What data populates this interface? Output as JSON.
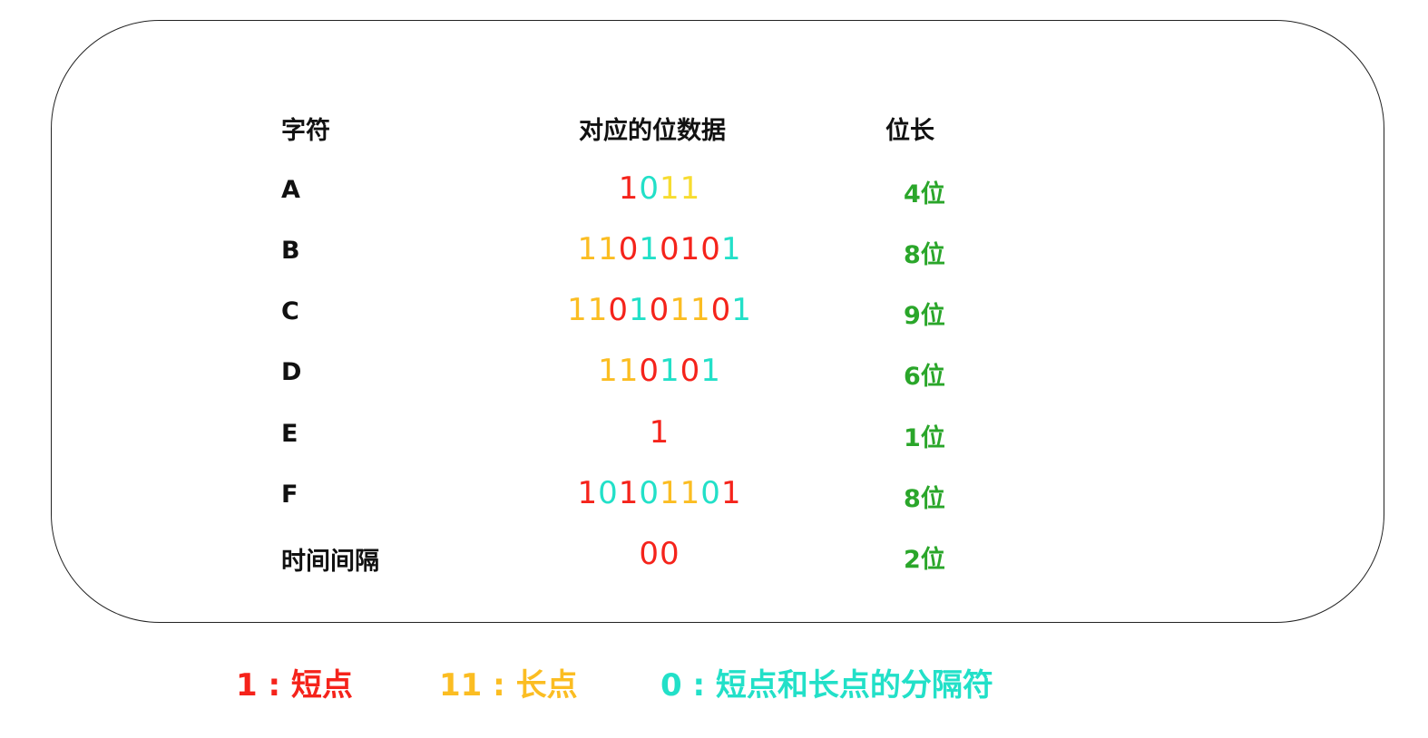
{
  "colors": {
    "short": "#f5231b",
    "long": "#fbbd22",
    "separator": "#22e0c8",
    "yellow": "#f7dc30",
    "length": "#2aa62a"
  },
  "headers": [
    "字符",
    "对应的位数据",
    "位长"
  ],
  "rows": [
    {
      "char": "A",
      "bits": [
        [
          "1",
          "short"
        ],
        [
          "0",
          "separator"
        ],
        [
          "1",
          "yellow"
        ],
        [
          "1",
          "yellow"
        ]
      ],
      "length": "4位"
    },
    {
      "char": "B",
      "bits": [
        [
          "1",
          "long"
        ],
        [
          "1",
          "long"
        ],
        [
          "0",
          "short"
        ],
        [
          "1",
          "separator"
        ],
        [
          "0",
          "short"
        ],
        [
          "1",
          "short"
        ],
        [
          "0",
          "short"
        ],
        [
          "1",
          "separator"
        ]
      ],
      "length": "8位"
    },
    {
      "char": "C",
      "bits": [
        [
          "1",
          "long"
        ],
        [
          "1",
          "long"
        ],
        [
          "0",
          "short"
        ],
        [
          "1",
          "separator"
        ],
        [
          "0",
          "short"
        ],
        [
          "1",
          "long"
        ],
        [
          "1",
          "long"
        ],
        [
          "0",
          "short"
        ],
        [
          "1",
          "separator"
        ]
      ],
      "length": "9位"
    },
    {
      "char": "D",
      "bits": [
        [
          "1",
          "long"
        ],
        [
          "1",
          "long"
        ],
        [
          "0",
          "short"
        ],
        [
          "1",
          "separator"
        ],
        [
          "0",
          "short"
        ],
        [
          "1",
          "separator"
        ]
      ],
      "length": "6位"
    },
    {
      "char": "E",
      "bits": [
        [
          "1",
          "short"
        ]
      ],
      "length": "1位"
    },
    {
      "char": "F",
      "bits": [
        [
          "1",
          "short"
        ],
        [
          "0",
          "separator"
        ],
        [
          "1",
          "short"
        ],
        [
          "0",
          "separator"
        ],
        [
          "1",
          "long"
        ],
        [
          "1",
          "long"
        ],
        [
          "0",
          "separator"
        ],
        [
          "1",
          "short"
        ]
      ],
      "length": "8位"
    },
    {
      "char": "时间间隔",
      "bits": [
        [
          "0",
          "short"
        ],
        [
          "0",
          "short"
        ]
      ],
      "length": "2位"
    }
  ],
  "legend": [
    {
      "text": "1 : 短点",
      "color": "short"
    },
    {
      "text": "11 : 长点",
      "color": "long"
    },
    {
      "text": "0 : 短点和长点的分隔符",
      "color": "separator"
    }
  ]
}
